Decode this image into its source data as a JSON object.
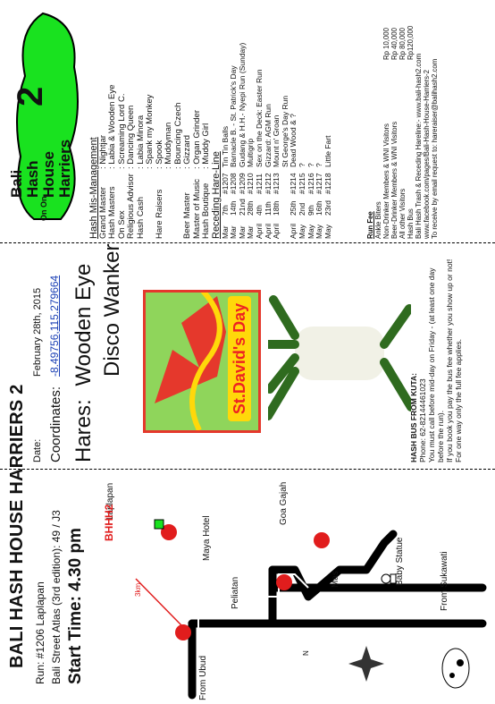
{
  "header": {
    "title": "BALI HASH HOUSE HARRIERS 2",
    "run": "Run: #1206 Laplapan",
    "atlas": "Bali Street Atlas (3rd edition): 49 / J3",
    "start": "Start Time: 4.30 pm"
  },
  "info": {
    "date_label": "Date:",
    "date_value": "February 28th, 2015",
    "coords_label": "Coordinates:",
    "coords_value": "-8.49756,115.279664",
    "hares_label": "Hares:",
    "hare1": "Wooden Eye",
    "hare2": "Disco Wanker"
  },
  "map": {
    "labels": {
      "laplapan": "Laplapan",
      "bhhh2": "BHHH2",
      "km": "3km",
      "maya": "Maya Hotel",
      "peliatan": "Peliatan",
      "goagajah": "Goa Gajah",
      "mas": "Mas",
      "babystatue": "Baby Statue",
      "fromsukawati": "From Sukawati",
      "fromubud": "From Ubud",
      "north": "N"
    }
  },
  "stdavid": {
    "text": "St.David's Day"
  },
  "bus": {
    "title": "HASH BUS FROM KUTA:",
    "phone": "Phone: 62-82144461023",
    "l1": "You must call before mid-day on Friday - (at least one day before the run).",
    "l2": "If you book you pay the bus fee whether you show up or not!",
    "l3": "For one way only the full fee applies."
  },
  "logo": {
    "line1": "Bali",
    "line2": "Hash",
    "line3": "House",
    "line4": "Harriers",
    "num": "2",
    "onon": "On On"
  },
  "mgmt": {
    "title": "Hash Mis-Management",
    "rows": [
      [
        "Grand Master",
        ": Nightjar"
      ],
      [
        "Hash Masters",
        ": Labia & Wooden Eye"
      ],
      [
        "On Sex",
        ": Screaming Lord C."
      ],
      [
        "Religious Advisor",
        ": Dancing Queen"
      ],
      [
        "Hash Cash",
        ": Labia Minora"
      ],
      [
        "",
        ": Spank my Monkey"
      ],
      [
        "Hare Raisers",
        ": Spook"
      ],
      [
        "",
        ": Muddyman"
      ],
      [
        "",
        ": Bouncing Czech"
      ],
      [
        "Beer Master",
        ": Gizzard"
      ],
      [
        "Master of Music",
        ": Organ Grinder"
      ],
      [
        "Hash Boutique",
        ": Muddy Girl"
      ]
    ]
  },
  "hareline": {
    "title": "Receding Hare-Line",
    "rows": [
      [
        "Mar",
        "7th",
        "#1207",
        "Tin Tin Balls"
      ],
      [
        "Mar",
        "14th",
        "#1208",
        "Barnacle B. - St. Patrick's Day"
      ],
      [
        "Mar",
        "21nd",
        "#1209",
        "Gudang & H.H.- Nyepi Run (Sunday)"
      ],
      [
        "Mar",
        "28th",
        "#1210",
        "Multigrip"
      ],
      [
        "April",
        "4th",
        "#1211",
        "Sex on the Deck: Easter Run"
      ],
      [
        "April",
        "11th",
        "#1212",
        "Gizzard: AGM Run"
      ],
      [
        "April",
        "18th",
        "#1213",
        "Mount n' Groan"
      ],
      [
        "",
        "",
        "",
        "St George's Day Run"
      ],
      [
        "April",
        "25th",
        "#1214",
        "Dead Wood & ?"
      ],
      [
        "May",
        "2nd",
        "#1215",
        "?"
      ],
      [
        "May",
        "9th",
        "#1216",
        "?"
      ],
      [
        "May",
        "16th",
        "#1217",
        "?"
      ],
      [
        "May",
        "23rd",
        "#1218",
        "Little Fart"
      ]
    ]
  },
  "runfee": {
    "title": "Run Fee",
    "rows": [
      [
        "Ankle Biters",
        ""
      ],
      [
        "Non-Drinker Members & WNI Visitors",
        "Rp 10,000"
      ],
      [
        "Beer-Drinker Members & WNI Visitors",
        "Rp 40,000"
      ],
      [
        "All other Visitors",
        "Rp 80,000"
      ],
      [
        "Hash Bus",
        "Rp120,000"
      ]
    ],
    "l1": "Bali Hash Trash & Receding Hareline:- www.bali-hash2.com",
    "l2": "www.facebook.com/pages/Bali-Hash-House-Harriers-2",
    "l3": "To receive by email request to: hareraiser@balihash2.com"
  },
  "colors": {
    "green": "#19e21f",
    "red": "#e11d1d",
    "road": "#000000"
  }
}
